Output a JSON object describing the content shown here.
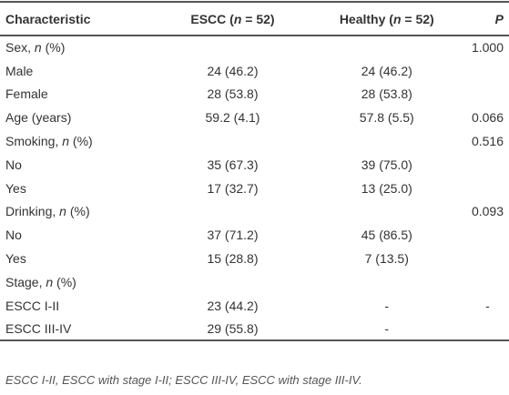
{
  "table": {
    "header": [
      [
        "Characteristic"
      ],
      [
        "ESCC (",
        "n",
        " = 52)"
      ],
      [
        "Healthy (",
        "n",
        " = 52)"
      ],
      [
        "",
        "P"
      ]
    ],
    "rows": [
      {
        "label": [
          "Sex, ",
          "n",
          " (%)"
        ],
        "p": "1.000"
      },
      {
        "label": [
          "Male"
        ],
        "escc": "24 (46.2)",
        "healthy": "24 (46.2)"
      },
      {
        "label": [
          "Female"
        ],
        "escc": "28 (53.8)",
        "healthy": "28 (53.8)"
      },
      {
        "label": [
          "Age (years)"
        ],
        "escc": "59.2 (4.1)",
        "healthy": "57.8 (5.5)",
        "p": "0.066"
      },
      {
        "label": [
          "Smoking, ",
          "n",
          " (%)"
        ],
        "p": "0.516"
      },
      {
        "label": [
          "No"
        ],
        "escc": "35 (67.3)",
        "healthy": "39 (75.0)"
      },
      {
        "label": [
          "Yes"
        ],
        "escc": "17 (32.7)",
        "healthy": "13 (25.0)"
      },
      {
        "label": [
          "Drinking, ",
          "n",
          " (%)"
        ],
        "p": "0.093"
      },
      {
        "label": [
          "No"
        ],
        "escc": "37 (71.2)",
        "healthy": "45 (86.5)"
      },
      {
        "label": [
          "Yes"
        ],
        "escc": "15 (28.8)",
        "healthy": "7 (13.5)"
      },
      {
        "label": [
          "Stage, ",
          "n",
          " (%)"
        ]
      },
      {
        "label": [
          "ESCC I-II"
        ],
        "escc": "23 (44.2)",
        "healthy": "-",
        "p": "-"
      },
      {
        "label": [
          "ESCC III-IV"
        ],
        "escc": "29 (55.8)",
        "healthy": "-"
      }
    ],
    "footnote": "ESCC I-II, ESCC with stage I-II; ESCC III-IV, ESCC with stage III-IV."
  }
}
